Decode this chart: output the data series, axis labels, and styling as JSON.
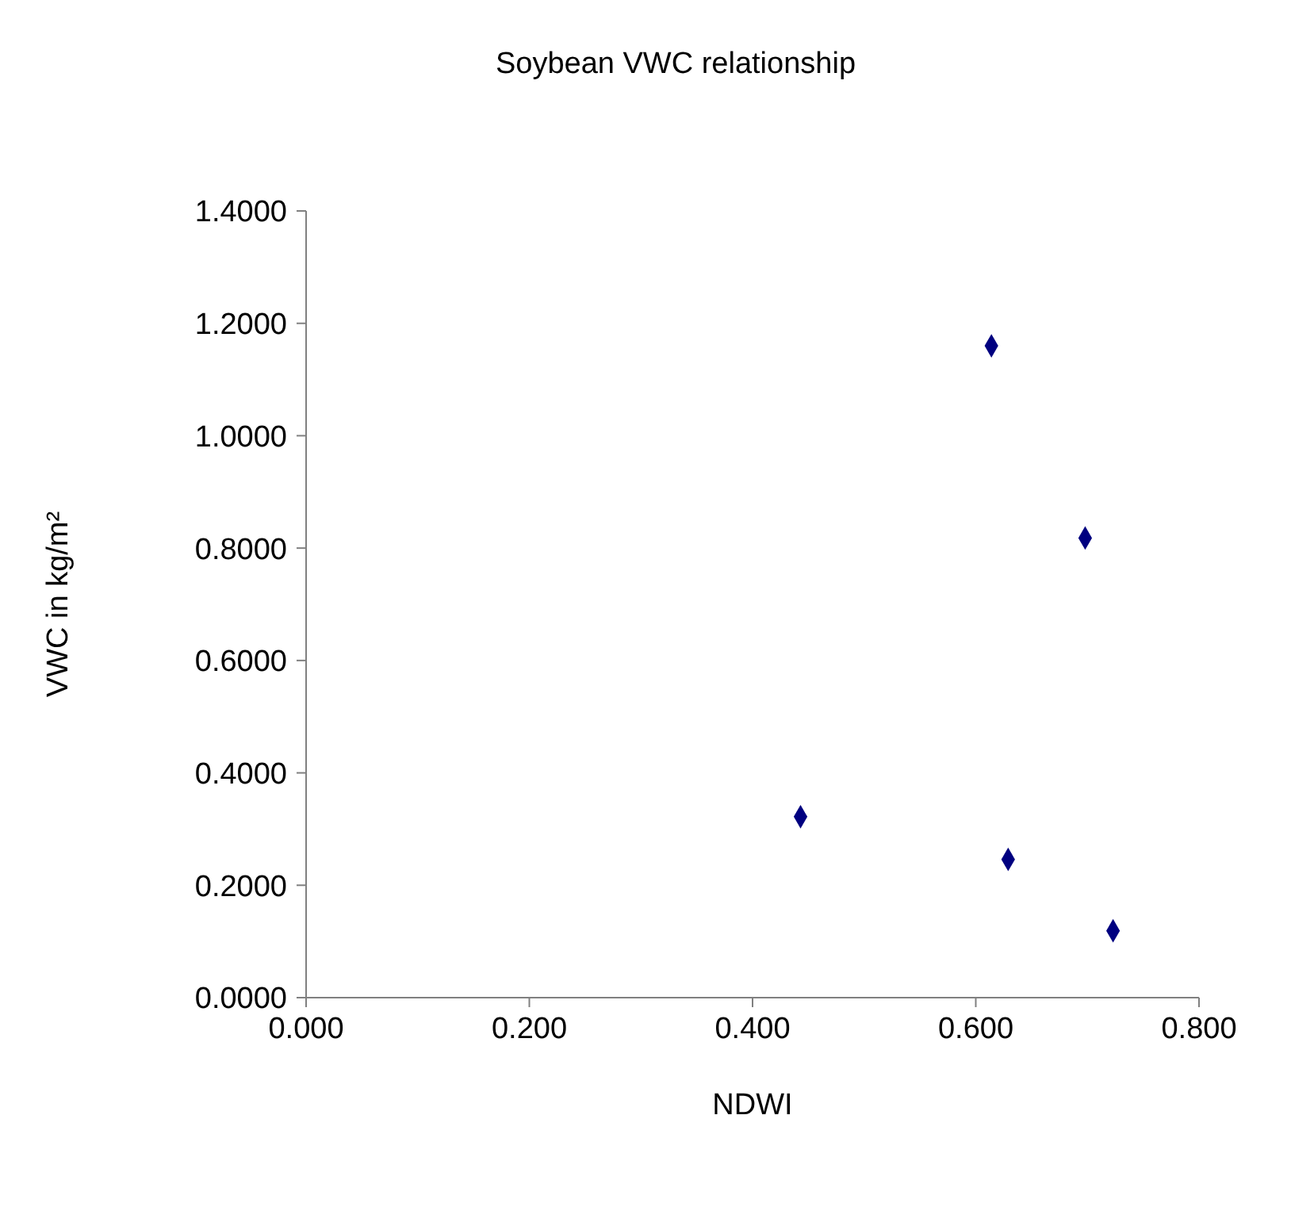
{
  "chart_data": {
    "type": "scatter",
    "title": "Soybean VWC relationship",
    "xlabel": "NDWI",
    "ylabel": "VWC in kg/m²",
    "x": [
      0.614,
      0.698,
      0.443,
      0.629,
      0.723
    ],
    "series": [
      {
        "color": "#000080",
        "values": [
          1.16,
          0.818,
          0.322,
          0.246,
          0.119
        ]
      }
    ],
    "xlim": [
      0,
      0.8
    ],
    "xticks": [
      {
        "value": 0,
        "label": "0.000"
      },
      {
        "value": 0.2,
        "label": "0.200"
      },
      {
        "value": 0.4,
        "label": "0.400"
      },
      {
        "value": 0.6,
        "label": "0.600"
      },
      {
        "value": 0.8,
        "label": "0.800"
      }
    ],
    "ylim": [
      0,
      1.4
    ],
    "yticks": [
      {
        "value": 0,
        "label": "0.0000"
      },
      {
        "value": 0.2,
        "label": "0.2000"
      },
      {
        "value": 0.4,
        "label": "0.4000"
      },
      {
        "value": 0.6,
        "label": "0.6000"
      },
      {
        "value": 0.8,
        "label": "0.8000"
      },
      {
        "value": 1,
        "label": "1.0000"
      },
      {
        "value": 1.2,
        "label": "1.2000"
      },
      {
        "value": 1.4,
        "label": "1.4000"
      }
    ],
    "marker": "diamond",
    "grid": false,
    "legend": false
  }
}
